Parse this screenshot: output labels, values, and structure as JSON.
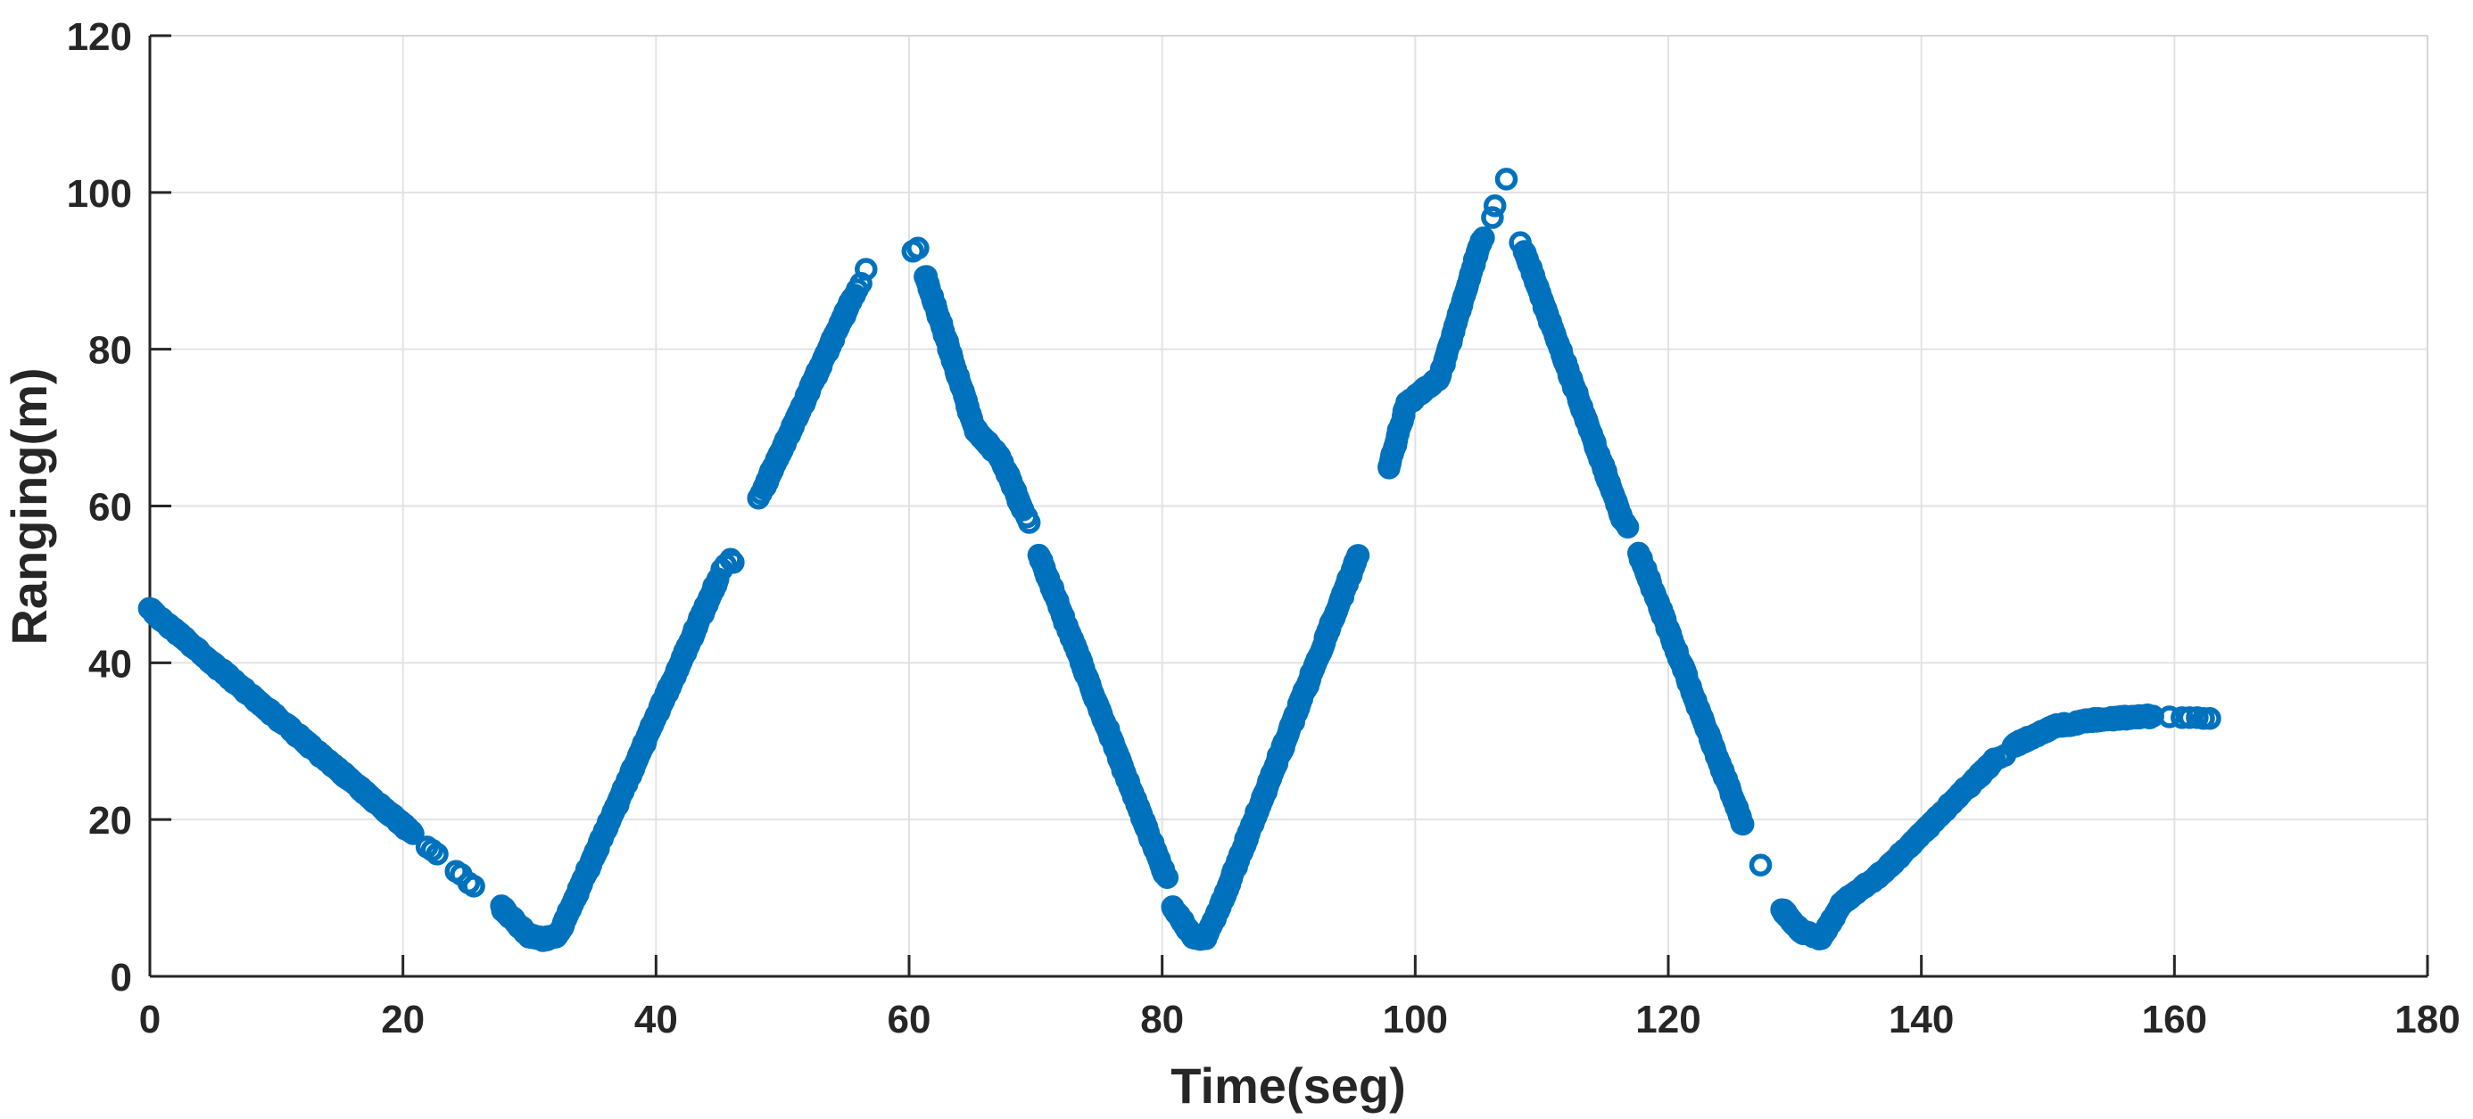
{
  "figure": {
    "background": "#ffffff"
  },
  "chart_data": {
    "type": "scatter",
    "title": "",
    "xlabel": "Time(seg)",
    "ylabel": "Ranging(m)",
    "xlim": [
      0,
      180
    ],
    "ylim": [
      0,
      120
    ],
    "xticks": [
      0,
      20,
      40,
      60,
      80,
      100,
      120,
      140,
      160,
      180
    ],
    "yticks": [
      0,
      20,
      40,
      60,
      80,
      100,
      120
    ],
    "grid": true,
    "legend_position": "none",
    "marker": {
      "shape": "open-circle",
      "color": "#0072BD",
      "radius_px": 10,
      "stroke_px": 5.5
    },
    "axis_color": "#262626",
    "grid_color": "#e2e2e2",
    "box_color": "#d6d6d6",
    "series_name": "ranging-measurements",
    "dense_segments": [
      {
        "dt": 0.06,
        "pts": [
          [
            0,
            46.8
          ],
          [
            20.8,
            18.2
          ]
        ]
      },
      {
        "dt": 0.06,
        "pts": [
          [
            27.8,
            8.8
          ],
          [
            29.9,
            5.2
          ],
          [
            31.2,
            4.7
          ],
          [
            32.3,
            5.3
          ],
          [
            44.9,
            50.7
          ]
        ]
      },
      {
        "dt": 0.06,
        "pts": [
          [
            48.5,
            62.2
          ],
          [
            55.5,
            86.5
          ]
        ]
      },
      {
        "dt": 0.06,
        "pts": [
          [
            61.3,
            89.4
          ],
          [
            65.2,
            69.8
          ],
          [
            67.2,
            66.2
          ],
          [
            69.0,
            59.5
          ]
        ]
      },
      {
        "dt": 0.06,
        "pts": [
          [
            70.3,
            53.6
          ],
          [
            80.2,
            13.0
          ]
        ]
      },
      {
        "dt": 0.06,
        "pts": [
          [
            80.8,
            8.9
          ],
          [
            82.4,
            5.1
          ],
          [
            83.4,
            4.8
          ],
          [
            84.6,
            9.0
          ],
          [
            95.5,
            53.7
          ]
        ]
      },
      {
        "dt": 0.06,
        "pts": [
          [
            97.9,
            64.8
          ],
          [
            99.3,
            73.0
          ],
          [
            101.9,
            76.3
          ],
          [
            105.2,
            93.8
          ]
        ]
      },
      {
        "dt": 0.06,
        "pts": [
          [
            108.6,
            92.6
          ],
          [
            116.4,
            58.2
          ]
        ]
      },
      {
        "dt": 0.06,
        "pts": [
          [
            117.7,
            53.9
          ],
          [
            125.9,
            19.4
          ]
        ]
      },
      {
        "dt": 0.06,
        "pts": [
          [
            129.0,
            8.5
          ],
          [
            130.5,
            5.7
          ],
          [
            132.1,
            4.9
          ],
          [
            133.7,
            9.3
          ],
          [
            137.0,
            13.3
          ],
          [
            145.8,
            27.6
          ]
        ]
      },
      {
        "dt": 0.08,
        "pts": [
          [
            147.2,
            29.4
          ],
          [
            150.6,
            31.9
          ],
          [
            154.0,
            32.8
          ],
          [
            158.3,
            33.2
          ]
        ]
      }
    ],
    "sparse_points": [
      [
        21.9,
        16.5
      ],
      [
        22.3,
        16.1
      ],
      [
        22.7,
        15.6
      ],
      [
        24.2,
        13.4
      ],
      [
        24.6,
        13.0
      ],
      [
        25.2,
        11.9
      ],
      [
        25.6,
        11.5
      ],
      [
        45.2,
        51.9
      ],
      [
        45.5,
        52.5
      ],
      [
        45.9,
        53.2
      ],
      [
        46.1,
        52.8
      ],
      [
        48.1,
        61.0
      ],
      [
        48.3,
        61.6
      ],
      [
        55.7,
        86.9
      ],
      [
        55.9,
        87.6
      ],
      [
        56.2,
        88.4
      ],
      [
        56.6,
        90.2
      ],
      [
        60.3,
        92.5
      ],
      [
        60.7,
        92.9
      ],
      [
        69.3,
        58.6
      ],
      [
        69.5,
        57.9
      ],
      [
        80.4,
        12.6
      ],
      [
        105.4,
        94.2
      ],
      [
        106.1,
        96.8
      ],
      [
        106.3,
        98.3
      ],
      [
        107.2,
        101.7
      ],
      [
        108.3,
        93.6
      ],
      [
        116.6,
        57.8
      ],
      [
        116.8,
        57.3
      ],
      [
        127.3,
        14.2
      ],
      [
        146.2,
        27.9
      ],
      [
        146.6,
        28.2
      ],
      [
        159.6,
        33.1
      ],
      [
        160.6,
        33.0
      ],
      [
        161.2,
        33.0
      ],
      [
        161.8,
        33.0
      ],
      [
        162.3,
        32.9
      ],
      [
        162.8,
        32.9
      ]
    ]
  }
}
